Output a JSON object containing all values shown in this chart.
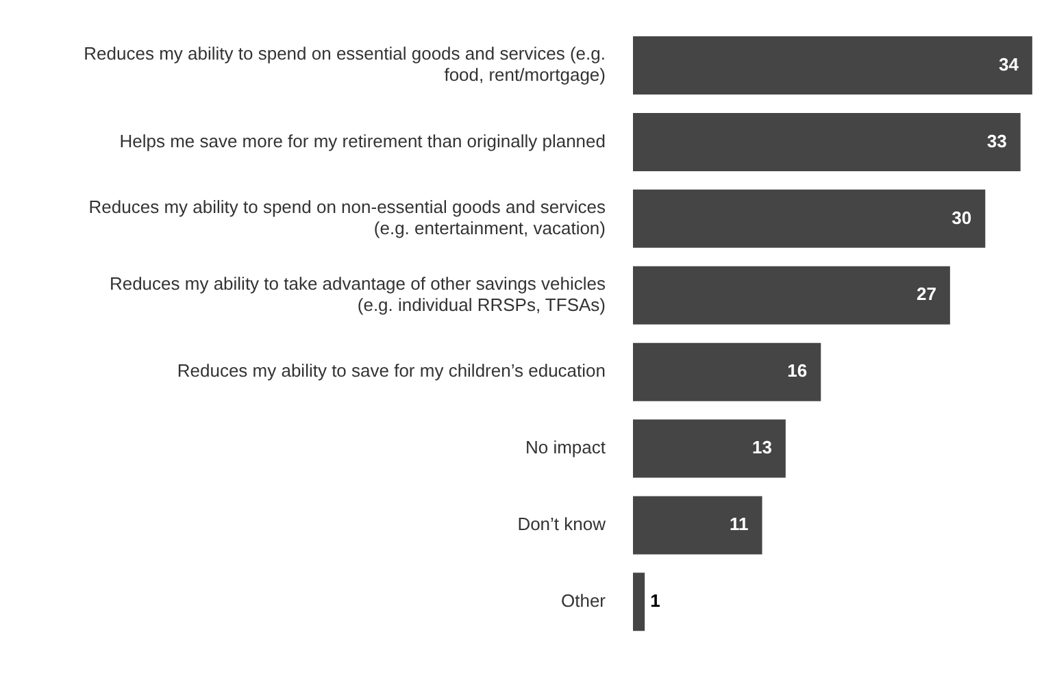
{
  "chart_data": {
    "type": "bar",
    "orientation": "horizontal",
    "categories": [
      "Reduces my ability to spend on essential goods and services (e.g. food, rent/mortgage)",
      "Helps me save more for my retirement than originally planned",
      "Reduces my ability to spend on non-essential goods and services (e.g. entertainment, vacation)",
      "Reduces my ability to take advantage of other savings vehicles (e.g. individual RRSPs, TFSAs)",
      "Reduces my ability to save for my children’s education",
      "No impact",
      "Don’t know",
      "Other"
    ],
    "values": [
      34,
      33,
      30,
      27,
      16,
      13,
      11,
      1
    ],
    "color": "#454545",
    "data_labels": true
  }
}
